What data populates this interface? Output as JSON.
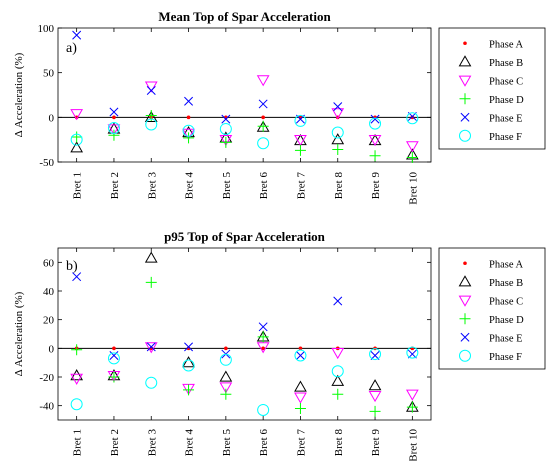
{
  "chart_data": [
    {
      "type": "scatter",
      "title": "Mean Top of Spar Acceleration",
      "panel_label": "a)",
      "ylabel": "Δ Acceleration (%)",
      "xlabel": "",
      "categories": [
        "Bret 1",
        "Bret 2",
        "Bret 3",
        "Bret 4",
        "Bret 5",
        "Bret 6",
        "Bret 7",
        "Bret 8",
        "Bret 9",
        "Bret 10"
      ],
      "ylim": [
        -50,
        100
      ],
      "yticks": [
        -50,
        0,
        50,
        100
      ],
      "grid": false,
      "zero_line": true,
      "legend_position": "outside-right",
      "series": [
        {
          "name": "Phase A",
          "marker": "dot",
          "color": "#ff0000",
          "values": [
            0,
            0,
            0,
            0,
            0,
            0,
            0,
            0,
            0,
            0
          ]
        },
        {
          "name": "Phase B",
          "marker": "triangle-up",
          "color": "#000000",
          "values": [
            -34,
            -13,
            0,
            -17,
            -23,
            -11,
            -26,
            -25,
            -26,
            -42
          ]
        },
        {
          "name": "Phase C",
          "marker": "triangle-down",
          "color": "#ff00ff",
          "values": [
            4,
            -13,
            35,
            -18,
            -25,
            42,
            -25,
            5,
            -25,
            -32
          ]
        },
        {
          "name": "Phase D",
          "marker": "plus",
          "color": "#00ff00",
          "values": [
            -22,
            -20,
            2,
            -23,
            -28,
            -10,
            -37,
            -36,
            -43,
            -45
          ]
        },
        {
          "name": "Phase E",
          "marker": "cross",
          "color": "#0000ff",
          "values": [
            92,
            6,
            30,
            18,
            -2,
            15,
            -2,
            12,
            -2,
            1
          ]
        },
        {
          "name": "Phase F",
          "marker": "circle",
          "color": "#00ffff",
          "values": [
            -25,
            -12,
            -8,
            -15,
            -13,
            -29,
            -4,
            -17,
            -7,
            -1
          ]
        }
      ]
    },
    {
      "type": "scatter",
      "title": "p95 Top of Spar Acceleration",
      "panel_label": "b)",
      "ylabel": "Δ Acceleration (%)",
      "xlabel": "",
      "categories": [
        "Bret 1",
        "Bret 2",
        "Bret 3",
        "Bret 4",
        "Bret 5",
        "Bret 6",
        "Bret 7",
        "Bret 8",
        "Bret 9",
        "Bret 10"
      ],
      "ylim": [
        -50,
        70
      ],
      "yticks": [
        -40,
        -20,
        0,
        20,
        40,
        60
      ],
      "grid": false,
      "zero_line": true,
      "legend_position": "outside-right",
      "series": [
        {
          "name": "Phase A",
          "marker": "dot",
          "color": "#ff0000",
          "values": [
            0,
            0,
            0,
            0,
            0,
            0,
            0,
            0,
            0,
            0
          ]
        },
        {
          "name": "Phase B",
          "marker": "triangle-up",
          "color": "#000000",
          "values": [
            -19,
            -19,
            63,
            -10,
            -20,
            8,
            -27,
            -23,
            -26,
            -41
          ]
        },
        {
          "name": "Phase C",
          "marker": "triangle-down",
          "color": "#ff00ff",
          "values": [
            -21,
            -19,
            1,
            -28,
            -27,
            1,
            -34,
            -3,
            -33,
            -32
          ]
        },
        {
          "name": "Phase D",
          "marker": "plus",
          "color": "#00ff00",
          "values": [
            -1,
            -20,
            46,
            -29,
            -32,
            8,
            -42,
            -32,
            -44,
            -41
          ]
        },
        {
          "name": "Phase E",
          "marker": "cross",
          "color": "#0000ff",
          "values": [
            50,
            -5,
            1,
            1,
            -4,
            15,
            -5,
            33,
            -5,
            -4
          ]
        },
        {
          "name": "Phase F",
          "marker": "circle",
          "color": "#00ffff",
          "values": [
            -39,
            -7,
            -24,
            -12,
            -8,
            -43,
            -5,
            -16,
            -4,
            -3
          ]
        }
      ]
    }
  ]
}
